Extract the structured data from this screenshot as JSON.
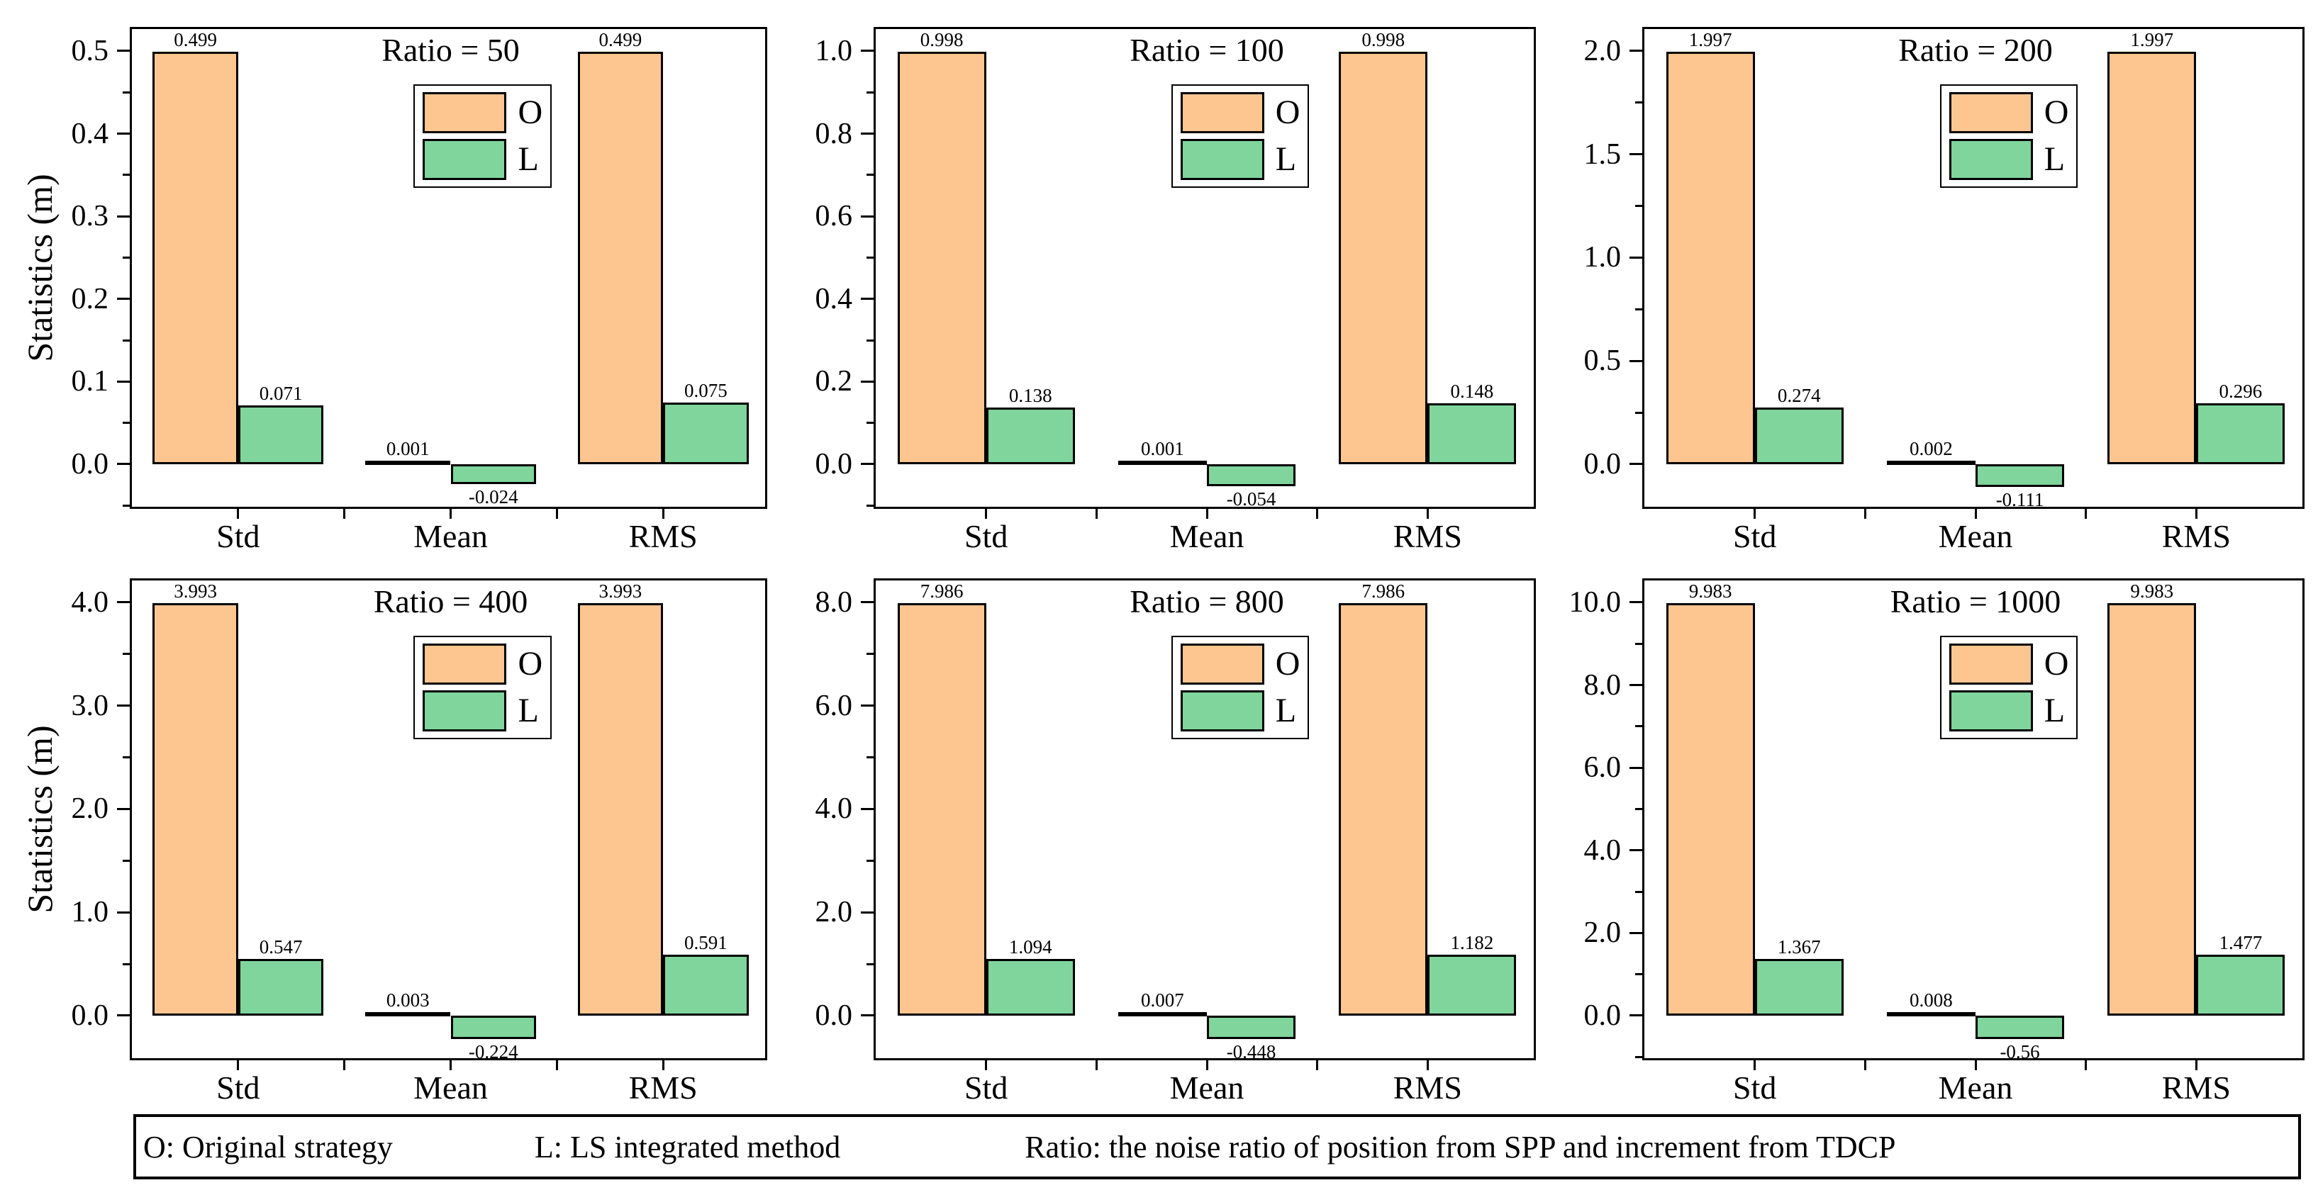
{
  "colors": {
    "o_fill": "#FDC691",
    "l_fill": "#7FD59B",
    "outline": "#000000"
  },
  "legend": {
    "entries": [
      {
        "label": "O",
        "color_key": "o_fill"
      },
      {
        "label": "L",
        "color_key": "l_fill"
      }
    ]
  },
  "footer": {
    "items": [
      "O: Original strategy",
      "L: LS integrated method",
      "Ratio: the noise ratio of position from SPP and increment from TDCP"
    ]
  },
  "chart_data": [
    {
      "type": "bar",
      "title": "Ratio = 50",
      "ratio": 50,
      "ylabel": "Statistics (m)",
      "categories": [
        "Std",
        "Mean",
        "RMS"
      ],
      "series": [
        {
          "name": "O",
          "values": [
            0.499,
            0.001,
            0.499
          ],
          "labels": [
            "0.499",
            "0.001",
            "0.499"
          ]
        },
        {
          "name": "L",
          "values": [
            0.071,
            -0.024,
            0.075
          ],
          "labels": [
            "0.071",
            "-0.024",
            "0.075"
          ]
        }
      ],
      "ytick_labels": [
        "0.0",
        "0.1",
        "0.2",
        "0.3",
        "0.4",
        "0.5"
      ],
      "ytick_values": [
        0,
        0.1,
        0.2,
        0.3,
        0.4,
        0.5
      ],
      "minor_step": 0.05,
      "ylim": [
        -0.0566,
        0.5265
      ],
      "grid": false,
      "legend_position": "upper-center-right"
    },
    {
      "type": "bar",
      "title": "Ratio = 100",
      "ratio": 100,
      "categories": [
        "Std",
        "Mean",
        "RMS"
      ],
      "series": [
        {
          "name": "O",
          "values": [
            0.998,
            0.001,
            0.998
          ],
          "labels": [
            "0.998",
            "0.001",
            "0.998"
          ]
        },
        {
          "name": "L",
          "values": [
            0.138,
            -0.054,
            0.148
          ],
          "labels": [
            "0.138",
            "-0.054",
            "0.148"
          ]
        }
      ],
      "ytick_labels": [
        "0.0",
        "0.2",
        "0.4",
        "0.6",
        "0.8",
        "1.0"
      ],
      "ytick_values": [
        0,
        0.2,
        0.4,
        0.6,
        0.8,
        1.0
      ],
      "minor_step": 0.1,
      "ylim": [
        -0.1132,
        1.053
      ],
      "grid": false,
      "legend_position": "upper-center-right"
    },
    {
      "type": "bar",
      "title": "Ratio = 200",
      "ratio": 200,
      "categories": [
        "Std",
        "Mean",
        "RMS"
      ],
      "series": [
        {
          "name": "O",
          "values": [
            1.997,
            0.002,
            1.997
          ],
          "labels": [
            "1.997",
            "0.002",
            "1.997"
          ]
        },
        {
          "name": "L",
          "values": [
            0.274,
            -0.111,
            0.296
          ],
          "labels": [
            "0.274",
            "-0.111",
            "0.296"
          ]
        }
      ],
      "ytick_labels": [
        "0.0",
        "0.5",
        "1.0",
        "1.5",
        "2.0"
      ],
      "ytick_values": [
        0,
        0.5,
        1.0,
        1.5,
        2.0
      ],
      "minor_step": 0.25,
      "ylim": [
        -0.2264,
        2.106
      ],
      "grid": false,
      "legend_position": "upper-center-right"
    },
    {
      "type": "bar",
      "title": "Ratio = 400",
      "ratio": 400,
      "ylabel": "Statistics (m)",
      "categories": [
        "Std",
        "Mean",
        "RMS"
      ],
      "series": [
        {
          "name": "O",
          "values": [
            3.993,
            0.003,
            3.993
          ],
          "labels": [
            "3.993",
            "0.003",
            "3.993"
          ]
        },
        {
          "name": "L",
          "values": [
            0.547,
            -0.224,
            0.591
          ],
          "labels": [
            "0.547",
            "-0.224",
            "0.591"
          ]
        }
      ],
      "ytick_labels": [
        "0.0",
        "1.0",
        "2.0",
        "3.0",
        "4.0"
      ],
      "ytick_values": [
        0,
        1.0,
        2.0,
        3.0,
        4.0
      ],
      "minor_step": 0.5,
      "ylim": [
        -0.4528,
        4.212
      ],
      "grid": false,
      "legend_position": "upper-center-right"
    },
    {
      "type": "bar",
      "title": "Ratio = 800",
      "ratio": 800,
      "categories": [
        "Std",
        "Mean",
        "RMS"
      ],
      "series": [
        {
          "name": "O",
          "values": [
            7.986,
            0.007,
            7.986
          ],
          "labels": [
            "7.986",
            "0.007",
            "7.986"
          ]
        },
        {
          "name": "L",
          "values": [
            1.094,
            -0.448,
            1.182
          ],
          "labels": [
            "1.094",
            "-0.448",
            "1.182"
          ]
        }
      ],
      "ytick_labels": [
        "0.0",
        "2.0",
        "4.0",
        "6.0",
        "8.0"
      ],
      "ytick_values": [
        0,
        2.0,
        4.0,
        6.0,
        8.0
      ],
      "minor_step": 1.0,
      "ylim": [
        -0.9056,
        8.424
      ],
      "grid": false,
      "legend_position": "upper-center-right"
    },
    {
      "type": "bar",
      "title": "Ratio = 1000",
      "ratio": 1000,
      "categories": [
        "Std",
        "Mean",
        "RMS"
      ],
      "series": [
        {
          "name": "O",
          "values": [
            9.983,
            0.008,
            9.983
          ],
          "labels": [
            "9.983",
            "0.008",
            "9.983"
          ]
        },
        {
          "name": "L",
          "values": [
            1.367,
            -0.56,
            1.477
          ],
          "labels": [
            "1.367",
            "-0.56",
            "1.477"
          ]
        }
      ],
      "ytick_labels": [
        "0.0",
        "2.0",
        "4.0",
        "6.0",
        "8.0",
        "10.0"
      ],
      "ytick_values": [
        0,
        2.0,
        4.0,
        6.0,
        8.0,
        10.0
      ],
      "minor_step": 1.0,
      "ylim": [
        -1.132,
        10.53
      ],
      "grid": false,
      "legend_position": "upper-center-right"
    }
  ]
}
